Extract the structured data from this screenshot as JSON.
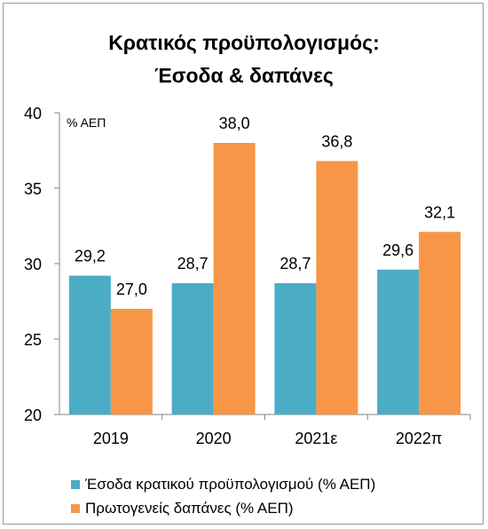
{
  "title_line1": "Κρατικός προϋπολογισμός:",
  "title_line2": "Έσοδα & δαπάνες",
  "chart_data": {
    "type": "bar",
    "title": "Κρατικός προϋπολογισμός: Έσοδα & δαπάνες",
    "unit_label": "% ΑΕΠ",
    "categories": [
      "2019",
      "2020",
      "2021ε",
      "2022π"
    ],
    "series": [
      {
        "name": "Έσοδα κρατικού προϋπολογισμού (% ΑΕΠ)",
        "color": "#4bacc6",
        "values": [
          29.2,
          28.7,
          28.7,
          29.6
        ],
        "labels": [
          "29,2",
          "28,7",
          "28,7",
          "29,6"
        ]
      },
      {
        "name": "Πρωτογενείς δαπάνες (% ΑΕΠ)",
        "color": "#f79646",
        "values": [
          27.0,
          38.0,
          36.8,
          32.1
        ],
        "labels": [
          "27,0",
          "38,0",
          "36,8",
          "32,1"
        ]
      }
    ],
    "ylim": [
      20,
      40
    ],
    "yticks": [
      20,
      25,
      30,
      35,
      40
    ],
    "legend_position": "bottom-left",
    "grid": false
  }
}
